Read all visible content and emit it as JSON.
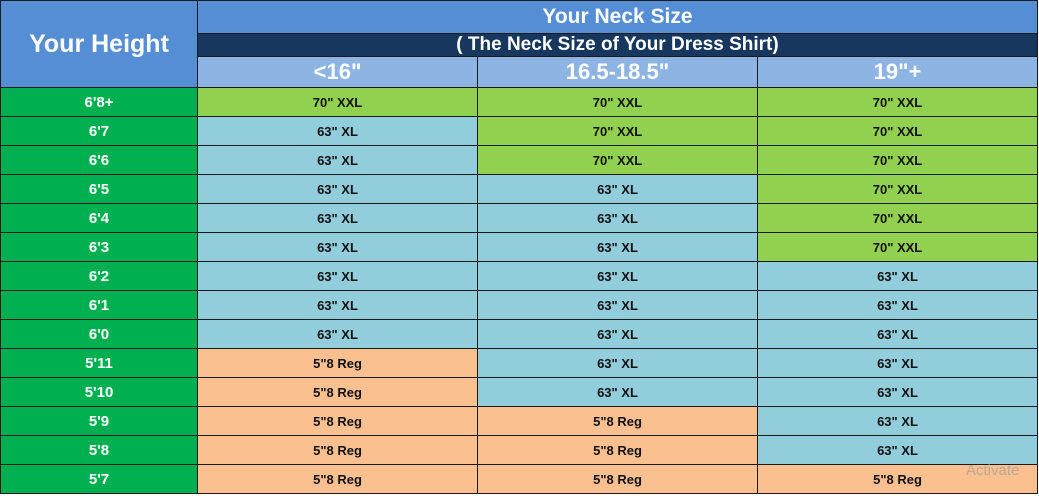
{
  "header": {
    "height_label": "Your Height",
    "title": "Your Neck Size",
    "subtitle": "( The Neck Size of Your Dress Shirt)",
    "columns": [
      "<16\"",
      "16.5-18.5\"",
      "19\"+"
    ]
  },
  "rows": [
    {
      "height": "6'8+",
      "cells": [
        "70\" XXL",
        "70\" XXL",
        "70\" XXL"
      ]
    },
    {
      "height": "6'7",
      "cells": [
        "63\" XL",
        "70\" XXL",
        "70\" XXL"
      ]
    },
    {
      "height": "6'6",
      "cells": [
        "63\" XL",
        "70\" XXL",
        "70\" XXL"
      ]
    },
    {
      "height": "6'5",
      "cells": [
        "63\" XL",
        "63\" XL",
        "70\" XXL"
      ]
    },
    {
      "height": "6'4",
      "cells": [
        "63\" XL",
        "63\" XL",
        "70\" XXL"
      ]
    },
    {
      "height": "6'3",
      "cells": [
        "63\" XL",
        "63\" XL",
        "70\" XXL"
      ]
    },
    {
      "height": "6'2",
      "cells": [
        "63\" XL",
        "63\" XL",
        "63\" XL"
      ]
    },
    {
      "height": "6'1",
      "cells": [
        "63\" XL",
        "63\" XL",
        "63\" XL"
      ]
    },
    {
      "height": "6'0",
      "cells": [
        "63\" XL",
        "63\" XL",
        "63\" XL"
      ]
    },
    {
      "height": "5'11",
      "cells": [
        "5\"8 Reg",
        "63\" XL",
        "63\" XL"
      ]
    },
    {
      "height": "5'10",
      "cells": [
        "5\"8 Reg",
        "63\" XL",
        "63\" XL"
      ]
    },
    {
      "height": "5'9",
      "cells": [
        "5\"8 Reg",
        "5\"8 Reg",
        "63\" XL"
      ]
    },
    {
      "height": "5'8",
      "cells": [
        "5\"8 Reg",
        "5\"8 Reg",
        "63\" XL"
      ]
    },
    {
      "height": "5'7",
      "cells": [
        "5\"8 Reg",
        "5\"8 Reg",
        "5\"8 Reg"
      ]
    }
  ],
  "colors": {
    "xxl": "#92d050",
    "xl": "#92cddc",
    "reg": "#fac090",
    "height": "#00b050",
    "header": "#558ed5",
    "subtitle": "#17375e"
  },
  "watermark": "Activate"
}
